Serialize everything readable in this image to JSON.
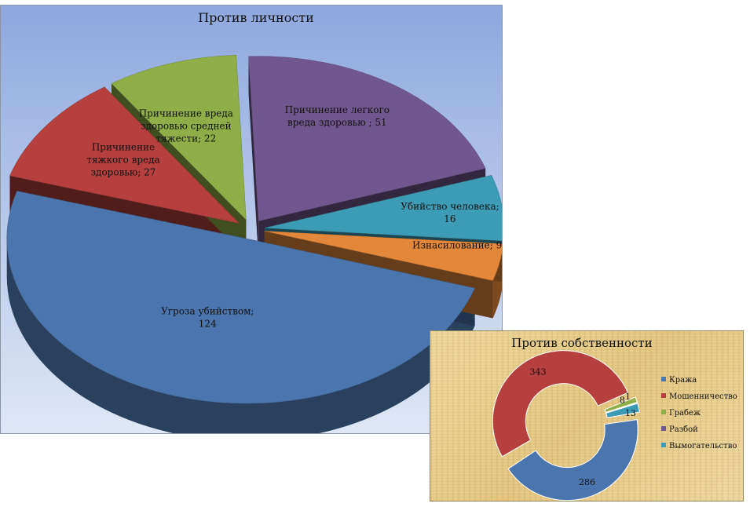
{
  "chart_data": [
    {
      "type": "pie",
      "title": "Против личности",
      "categories": [
        "Угроза убийством",
        "Причинение тяжкого вреда здоровью",
        "Причинение вреда здоровью средней тяжести",
        "Причинение легкого вреда здоровью",
        "Убийство человека",
        "Изнасилование"
      ],
      "values": [
        124,
        27,
        22,
        51,
        16,
        9
      ],
      "data_labels": [
        [
          "Угроза убийством;",
          "124"
        ],
        [
          "Причинение",
          "тяжкого вреда",
          "здоровью; 27"
        ],
        [
          "Причинение вреда",
          "здоровью средней",
          "тяжести; 22"
        ],
        [
          "Причинение легкого",
          "вреда здоровью ; 51"
        ],
        [
          "Убийство человека;",
          "16"
        ],
        [
          "Изнасилование; 9"
        ]
      ],
      "colors": [
        "#4a76ad",
        "#b5403d",
        "#8fae48",
        "#71578f",
        "#3d9cb5",
        "#e3873a"
      ],
      "style": "3d-exploded"
    },
    {
      "type": "pie",
      "subtype": "doughnut",
      "title": "Против собственности",
      "categories": [
        "Кража",
        "Мошенничество",
        "Грабеж",
        "Разбой",
        "Вымогательство"
      ],
      "values": [
        286,
        343,
        8,
        1,
        13
      ],
      "data_labels": [
        "286",
        "343",
        "8",
        "1",
        "13"
      ],
      "legend": {
        "position": "right",
        "entries": [
          "Кража",
          "Мошенничество",
          "Грабеж",
          "Разбой",
          "Вымогательство"
        ]
      },
      "colors": [
        "#4a76ad",
        "#b5403d",
        "#8fae48",
        "#71578f",
        "#3d9cb5"
      ]
    }
  ]
}
